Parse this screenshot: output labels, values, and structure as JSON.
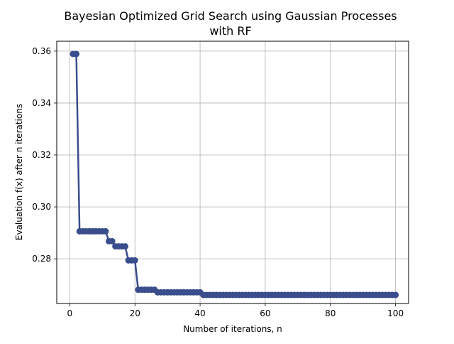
{
  "chart_data": {
    "type": "line",
    "title_line1": "Bayesian Optimized Grid Search using Gaussian Processes",
    "title_line2": "with RF",
    "xlabel": "Number of iterations, n",
    "ylabel": "Evaluation f(x) after n iterations",
    "xlim": [
      -4,
      104
    ],
    "ylim": [
      0.2628,
      0.3638
    ],
    "x_ticks": [
      0,
      20,
      40,
      60,
      80,
      100
    ],
    "y_ticks": [
      0.28,
      0.3,
      0.32,
      0.34,
      0.36
    ],
    "x_tick_labels": [
      "0",
      "20",
      "40",
      "60",
      "80",
      "100"
    ],
    "y_tick_labels": [
      "0.28",
      "0.30",
      "0.32",
      "0.34",
      "0.36"
    ],
    "grid": true,
    "series": [
      {
        "color": "#3a4d8c",
        "marker": "circle",
        "x": [
          1,
          2,
          3,
          4,
          5,
          6,
          7,
          8,
          9,
          10,
          11,
          12,
          13,
          14,
          15,
          16,
          17,
          18,
          19,
          20,
          21,
          22,
          23,
          24,
          25,
          26,
          27,
          28,
          29,
          30,
          31,
          32,
          33,
          34,
          35,
          36,
          37,
          38,
          39,
          40,
          41,
          42,
          43,
          44,
          45,
          46,
          47,
          48,
          49,
          50,
          51,
          52,
          53,
          54,
          55,
          56,
          57,
          58,
          59,
          60,
          61,
          62,
          63,
          64,
          65,
          66,
          67,
          68,
          69,
          70,
          71,
          72,
          73,
          74,
          75,
          76,
          77,
          78,
          79,
          80,
          81,
          82,
          83,
          84,
          85,
          86,
          87,
          88,
          89,
          90,
          91,
          92,
          93,
          94,
          95,
          96,
          97,
          98,
          99,
          100
        ],
        "values": [
          0.3589,
          0.3589,
          0.2906,
          0.2906,
          0.2906,
          0.2906,
          0.2906,
          0.2906,
          0.2906,
          0.2906,
          0.2906,
          0.2868,
          0.2868,
          0.2848,
          0.2848,
          0.2848,
          0.2848,
          0.2794,
          0.2794,
          0.2794,
          0.2681,
          0.2681,
          0.2681,
          0.2681,
          0.2681,
          0.2681,
          0.2671,
          0.2671,
          0.2671,
          0.2671,
          0.2671,
          0.2671,
          0.2671,
          0.2671,
          0.2671,
          0.2671,
          0.2671,
          0.2671,
          0.2671,
          0.2671,
          0.2661,
          0.2661,
          0.2661,
          0.2661,
          0.2661,
          0.2661,
          0.2661,
          0.2661,
          0.2661,
          0.2661,
          0.2661,
          0.2661,
          0.2661,
          0.2661,
          0.2661,
          0.2661,
          0.2661,
          0.2661,
          0.2661,
          0.2661,
          0.2661,
          0.2661,
          0.2661,
          0.2661,
          0.2661,
          0.2661,
          0.2661,
          0.2661,
          0.2661,
          0.2661,
          0.2661,
          0.2661,
          0.2661,
          0.2661,
          0.2661,
          0.2661,
          0.2661,
          0.2661,
          0.2661,
          0.2661,
          0.2661,
          0.2661,
          0.2661,
          0.2661,
          0.2661,
          0.2661,
          0.2661,
          0.2661,
          0.2661,
          0.2661,
          0.2661,
          0.2661,
          0.2661,
          0.2661,
          0.2661,
          0.2661,
          0.2661,
          0.2661,
          0.2661,
          0.2661
        ]
      }
    ]
  }
}
